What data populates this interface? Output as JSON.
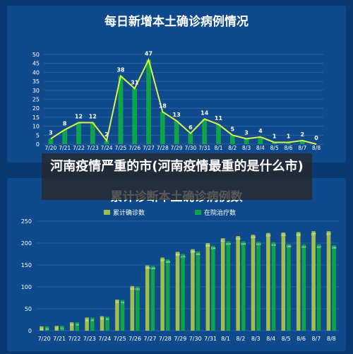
{
  "overlay_caption": "河南疫情严重的市(河南疫情最重的是什么市)",
  "colors": {
    "background": "#0b3a73",
    "panel": "#0f4b8c",
    "grid": "#2f67a6",
    "bar_green": "#10a44a",
    "bar_olive": "#9fbf4b",
    "line_yellow": "#d8f24a",
    "text": "#ffffff"
  },
  "chart_data": [
    {
      "type": "bar",
      "title": "每日新增本土确诊病例情况",
      "categories": [
        "7/20",
        "7/21",
        "7/22",
        "7/23",
        "7/24",
        "7/25",
        "7/26",
        "7/27",
        "7/28",
        "7/29",
        "7/30",
        "7/31",
        "8/1",
        "8/2",
        "8/3",
        "8/4",
        "8/5",
        "8/6",
        "8/7",
        "8/8"
      ],
      "values": [
        3,
        8,
        12,
        12,
        2,
        38,
        31,
        47,
        18,
        13,
        6,
        14,
        11,
        5,
        3,
        4,
        1,
        1,
        2,
        0
      ],
      "overlay_line": true,
      "ylim": [
        0,
        50
      ],
      "yticks": [
        0,
        5,
        10,
        15,
        20,
        25,
        30,
        35,
        40,
        45,
        50
      ],
      "grid": true
    },
    {
      "type": "bar",
      "title": "累计诊断本土确诊病例数",
      "categories": [
        "7/20",
        "7/21",
        "7/22",
        "7/23",
        "7/24",
        "7/25",
        "7/26",
        "7/27",
        "7/28",
        "7/29",
        "7/30",
        "7/31",
        "8/1",
        "8/2",
        "8/3",
        "8/4",
        "8/5",
        "8/6",
        "8/7",
        "8/8"
      ],
      "series": [
        {
          "name": "累计确诊数",
          "values": [
            10,
            11,
            19,
            30,
            33,
            71,
            102,
            149,
            167,
            180,
            186,
            200,
            211,
            216,
            219,
            223,
            224,
            225,
            227,
            227
          ]
        },
        {
          "name": "在院治疗数",
          "values": [
            10,
            11,
            19,
            30,
            32,
            70,
            101,
            148,
            163,
            175,
            181,
            194,
            204,
            204,
            203,
            202,
            198,
            197,
            197,
            195
          ]
        }
      ],
      "legend": "top-center",
      "ylim": [
        0,
        250
      ],
      "yticks": [
        0,
        50,
        100,
        150,
        200,
        250
      ],
      "grid": true
    }
  ]
}
